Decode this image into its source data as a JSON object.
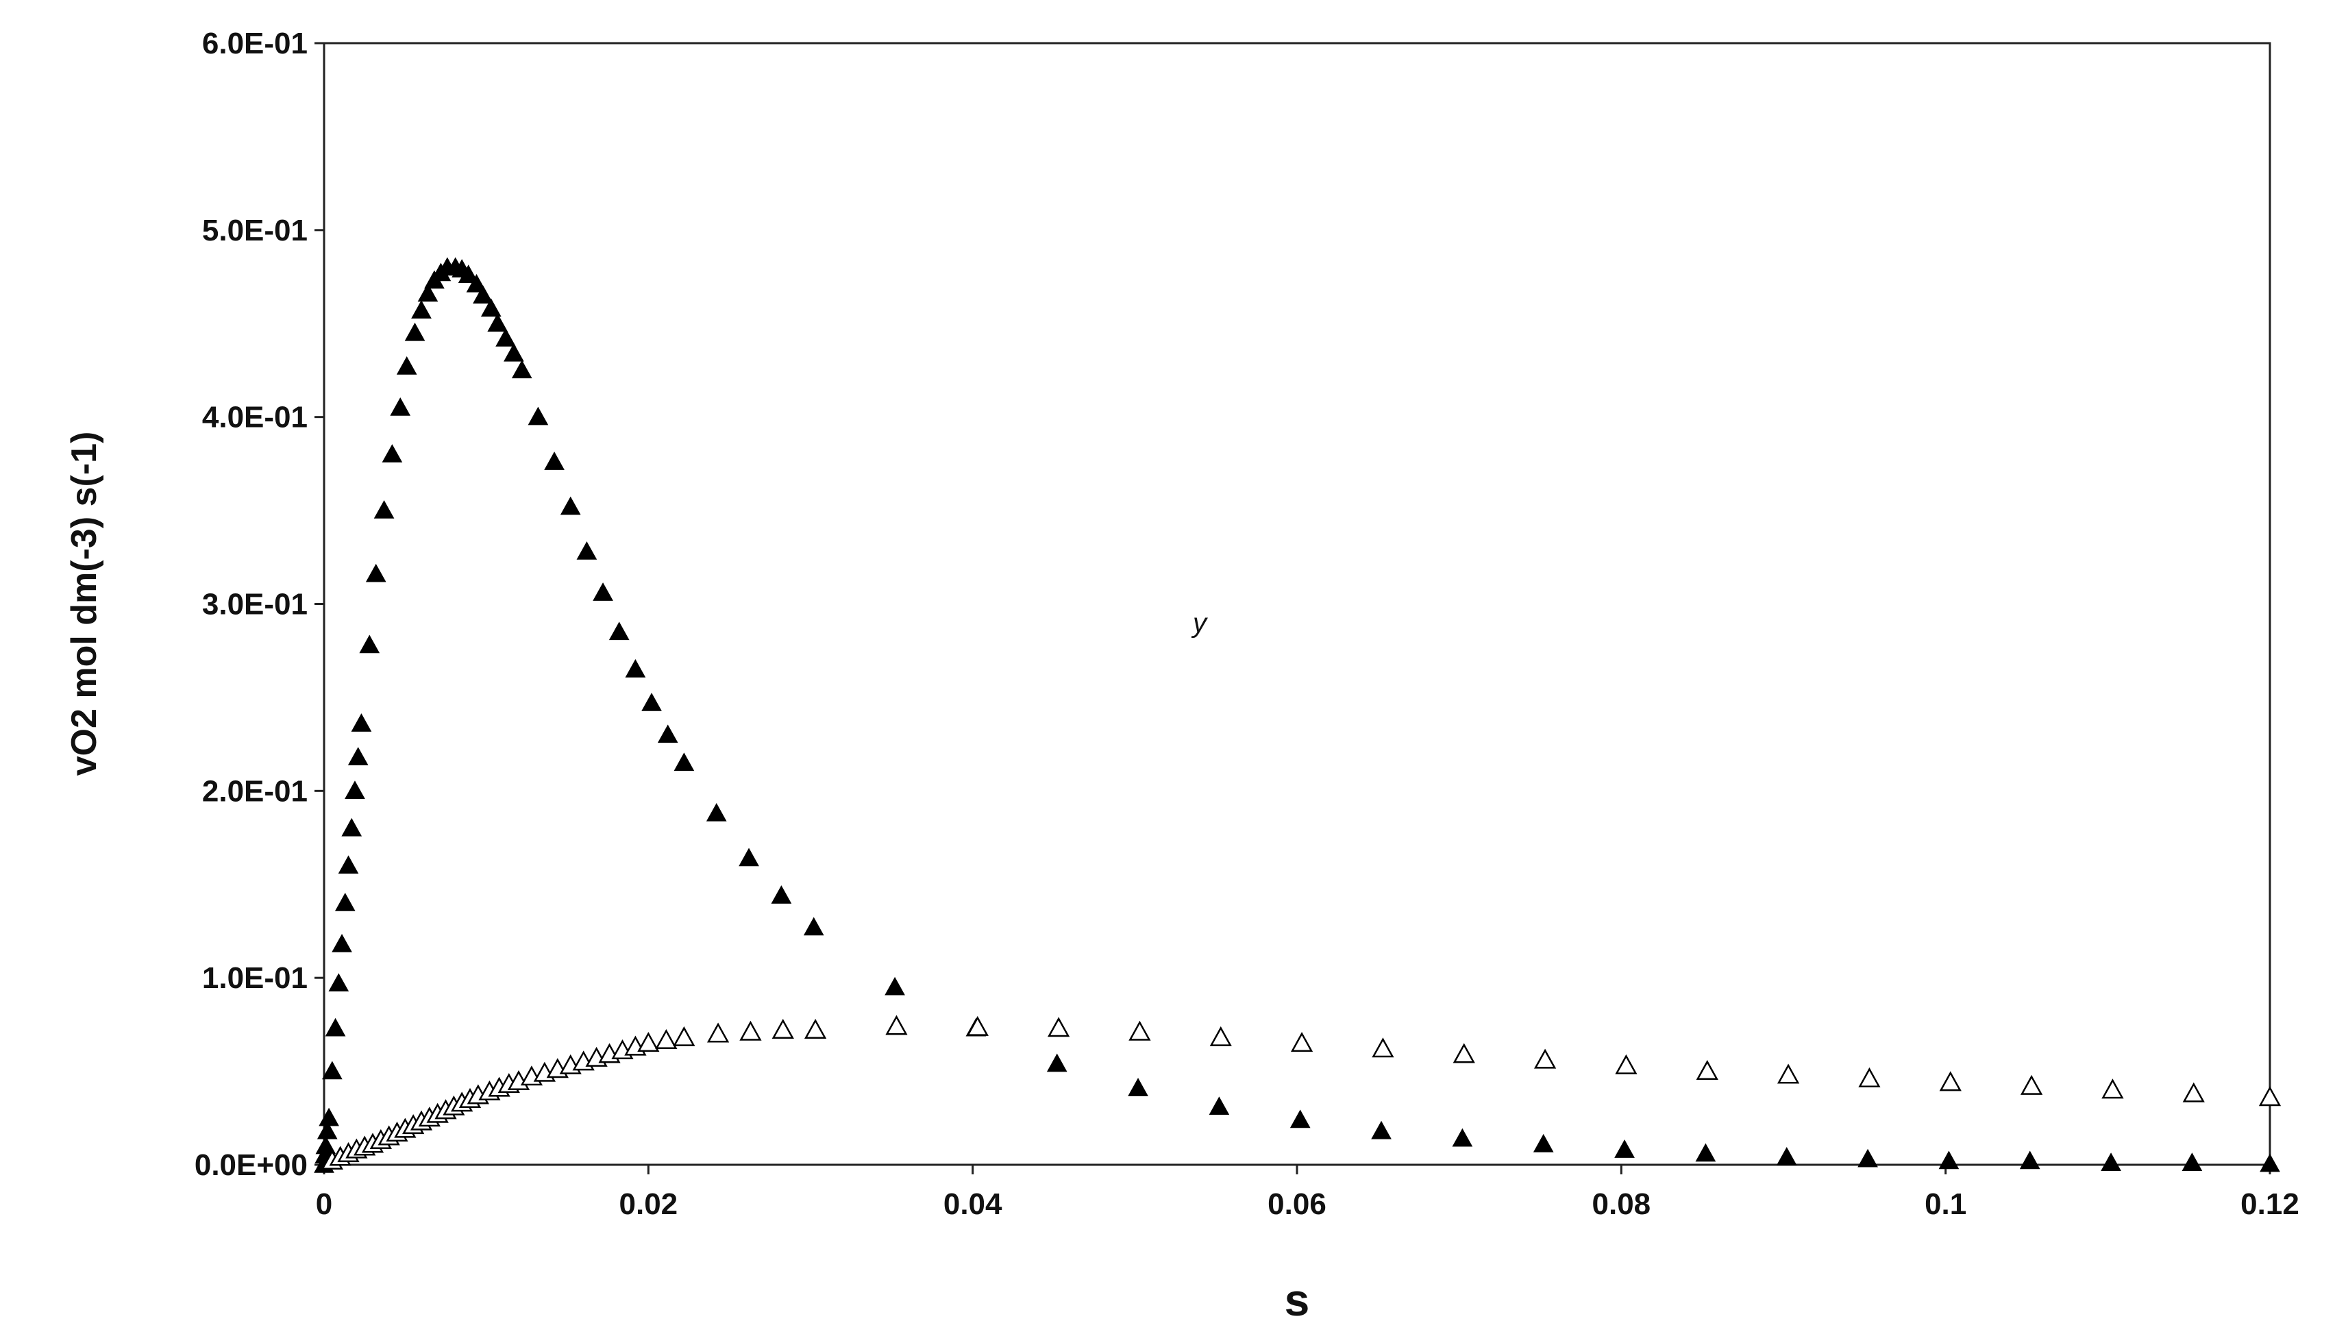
{
  "chart_data": {
    "type": "scatter",
    "title": "",
    "xlabel": "s",
    "ylabel": "vO2 mol dm(-3) s(-1)",
    "xlim": [
      0,
      0.12
    ],
    "ylim": [
      0,
      0.6
    ],
    "x_ticks": [
      "0",
      "0.02",
      "0.04",
      "0.06",
      "0.08",
      "0.1",
      "0.12"
    ],
    "x_tick_values": [
      0,
      0.02,
      0.04,
      0.06,
      0.08,
      0.1,
      0.12
    ],
    "y_ticks": [
      "0.0E+00",
      "1.0E-01",
      "2.0E-01",
      "3.0E-01",
      "4.0E-01",
      "5.0E-01",
      "6.0E-01"
    ],
    "y_tick_values": [
      0,
      0.1,
      0.2,
      0.3,
      0.4,
      0.5,
      0.6
    ],
    "grid": false,
    "legend": "none",
    "annotations": [
      {
        "text": "y",
        "x": 0.054,
        "y": 0.285
      }
    ],
    "series": [
      {
        "marker": "filled-triangle",
        "color": "#000000",
        "points": [
          [
            0,
            0
          ],
          [
            5e-05,
            0.005
          ],
          [
            0.0001,
            0.01
          ],
          [
            0.0002,
            0.018
          ],
          [
            0.0003,
            0.025
          ],
          [
            0.0005,
            0.05
          ],
          [
            0.0007,
            0.073
          ],
          [
            0.0009,
            0.097
          ],
          [
            0.0011,
            0.118
          ],
          [
            0.0013,
            0.14
          ],
          [
            0.0015,
            0.16
          ],
          [
            0.0017,
            0.18
          ],
          [
            0.0019,
            0.2
          ],
          [
            0.0021,
            0.218
          ],
          [
            0.0023,
            0.236
          ],
          [
            0.0028,
            0.278
          ],
          [
            0.0032,
            0.316
          ],
          [
            0.0037,
            0.35
          ],
          [
            0.0042,
            0.38
          ],
          [
            0.0047,
            0.405
          ],
          [
            0.0051,
            0.427
          ],
          [
            0.0056,
            0.445
          ],
          [
            0.006,
            0.457
          ],
          [
            0.0064,
            0.466
          ],
          [
            0.0068,
            0.473
          ],
          [
            0.0072,
            0.477
          ],
          [
            0.0076,
            0.48
          ],
          [
            0.0081,
            0.48
          ],
          [
            0.0085,
            0.479
          ],
          [
            0.0089,
            0.476
          ],
          [
            0.0094,
            0.471
          ],
          [
            0.0098,
            0.465
          ],
          [
            0.0103,
            0.458
          ],
          [
            0.0107,
            0.45
          ],
          [
            0.0112,
            0.442
          ],
          [
            0.0117,
            0.434
          ],
          [
            0.0122,
            0.425
          ],
          [
            0.0132,
            0.4
          ],
          [
            0.0142,
            0.376
          ],
          [
            0.0152,
            0.352
          ],
          [
            0.0162,
            0.328
          ],
          [
            0.0172,
            0.306
          ],
          [
            0.0182,
            0.285
          ],
          [
            0.0192,
            0.265
          ],
          [
            0.0202,
            0.247
          ],
          [
            0.0212,
            0.23
          ],
          [
            0.0222,
            0.215
          ],
          [
            0.0242,
            0.188
          ],
          [
            0.0262,
            0.164
          ],
          [
            0.0282,
            0.144
          ],
          [
            0.0302,
            0.127
          ],
          [
            0.0352,
            0.095
          ],
          [
            0.0402,
            0.073
          ],
          [
            0.0452,
            0.054
          ],
          [
            0.0502,
            0.041
          ],
          [
            0.0552,
            0.031
          ],
          [
            0.0602,
            0.024
          ],
          [
            0.0652,
            0.018
          ],
          [
            0.0702,
            0.014
          ],
          [
            0.0752,
            0.011
          ],
          [
            0.0802,
            0.008
          ],
          [
            0.0852,
            0.006
          ],
          [
            0.0902,
            0.004
          ],
          [
            0.0952,
            0.003
          ],
          [
            0.1002,
            0.002
          ],
          [
            0.1052,
            0.002
          ],
          [
            0.1102,
            0.001
          ],
          [
            0.1152,
            0.001
          ],
          [
            0.12,
            0.0005
          ]
        ]
      },
      {
        "marker": "open-triangle",
        "color": "#000000",
        "points": [
          [
            0.0005,
            0.002
          ],
          [
            0.001,
            0.004
          ],
          [
            0.0015,
            0.006
          ],
          [
            0.002,
            0.008
          ],
          [
            0.0025,
            0.0095
          ],
          [
            0.003,
            0.011
          ],
          [
            0.0035,
            0.013
          ],
          [
            0.004,
            0.015
          ],
          [
            0.0045,
            0.017
          ],
          [
            0.005,
            0.019
          ],
          [
            0.0055,
            0.021
          ],
          [
            0.006,
            0.023
          ],
          [
            0.0065,
            0.025
          ],
          [
            0.007,
            0.027
          ],
          [
            0.0075,
            0.029
          ],
          [
            0.008,
            0.031
          ],
          [
            0.0085,
            0.033
          ],
          [
            0.009,
            0.035
          ],
          [
            0.0095,
            0.037
          ],
          [
            0.0102,
            0.039
          ],
          [
            0.0108,
            0.041
          ],
          [
            0.0114,
            0.043
          ],
          [
            0.012,
            0.0445
          ],
          [
            0.0128,
            0.047
          ],
          [
            0.0136,
            0.049
          ],
          [
            0.0144,
            0.051
          ],
          [
            0.0152,
            0.053
          ],
          [
            0.016,
            0.055
          ],
          [
            0.0168,
            0.057
          ],
          [
            0.0176,
            0.059
          ],
          [
            0.0184,
            0.061
          ],
          [
            0.0192,
            0.063
          ],
          [
            0.02,
            0.065
          ],
          [
            0.0211,
            0.0665
          ],
          [
            0.0222,
            0.068
          ],
          [
            0.0243,
            0.07
          ],
          [
            0.0263,
            0.071
          ],
          [
            0.0283,
            0.072
          ],
          [
            0.0303,
            0.072
          ],
          [
            0.0353,
            0.074
          ],
          [
            0.0403,
            0.0735
          ],
          [
            0.0453,
            0.073
          ],
          [
            0.0503,
            0.071
          ],
          [
            0.0553,
            0.068
          ],
          [
            0.0603,
            0.065
          ],
          [
            0.0653,
            0.062
          ],
          [
            0.0703,
            0.059
          ],
          [
            0.0753,
            0.056
          ],
          [
            0.0803,
            0.053
          ],
          [
            0.0853,
            0.05
          ],
          [
            0.0903,
            0.048
          ],
          [
            0.0953,
            0.046
          ],
          [
            0.1003,
            0.044
          ],
          [
            0.1053,
            0.042
          ],
          [
            0.1103,
            0.04
          ],
          [
            0.1153,
            0.038
          ],
          [
            0.12,
            0.036
          ]
        ]
      }
    ]
  }
}
